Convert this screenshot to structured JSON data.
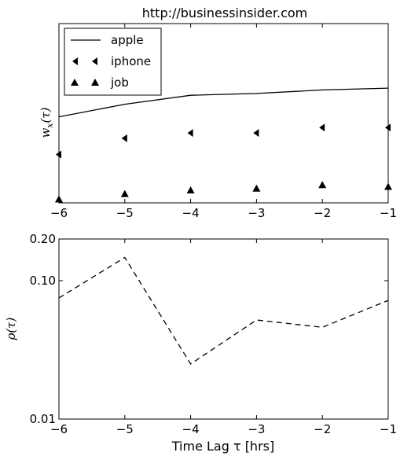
{
  "chart_data": [
    {
      "type": "line",
      "title": "http://businessinsider.com",
      "ylabel": "w_x(τ)",
      "xlabel": "",
      "x": [
        -6,
        -5,
        -4,
        -3,
        -2,
        -1
      ],
      "xticks": [
        "−6",
        "−5",
        "−4",
        "−3",
        "−2",
        "−1"
      ],
      "xlim": [
        -6,
        -1
      ],
      "ylim": [
        0,
        1
      ],
      "yticks_shown": false,
      "legend": "top-left",
      "series": [
        {
          "name": "apple",
          "style": "solid-line",
          "values": [
            0.48,
            0.55,
            0.6,
            0.61,
            0.63,
            0.64
          ]
        },
        {
          "name": "iphone",
          "style": "left-triangle-marker",
          "values": [
            0.27,
            0.36,
            0.39,
            0.39,
            0.42,
            0.42
          ]
        },
        {
          "name": "job",
          "style": "up-triangle-marker",
          "values": [
            0.02,
            0.05,
            0.07,
            0.08,
            0.1,
            0.09
          ]
        }
      ]
    },
    {
      "type": "line",
      "title": "",
      "ylabel": "ρ(τ)",
      "xlabel": "Time Lag τ [hrs]",
      "yscale": "log",
      "x": [
        -6,
        -5,
        -4,
        -3,
        -2,
        -1
      ],
      "xticks": [
        "−6",
        "−5",
        "−4",
        "−3",
        "−2",
        "−1"
      ],
      "yticks": [
        {
          "value": 0.2,
          "label": "0.20"
        },
        {
          "value": 0.1,
          "label": "0.10"
        },
        {
          "value": 0.01,
          "label": "0.01"
        }
      ],
      "xlim": [
        -6,
        -1
      ],
      "ylim": [
        0.01,
        0.2
      ],
      "series": [
        {
          "style": "dashed-line",
          "values": [
            0.075,
            0.147,
            0.025,
            0.052,
            0.046,
            0.072
          ]
        }
      ]
    }
  ]
}
